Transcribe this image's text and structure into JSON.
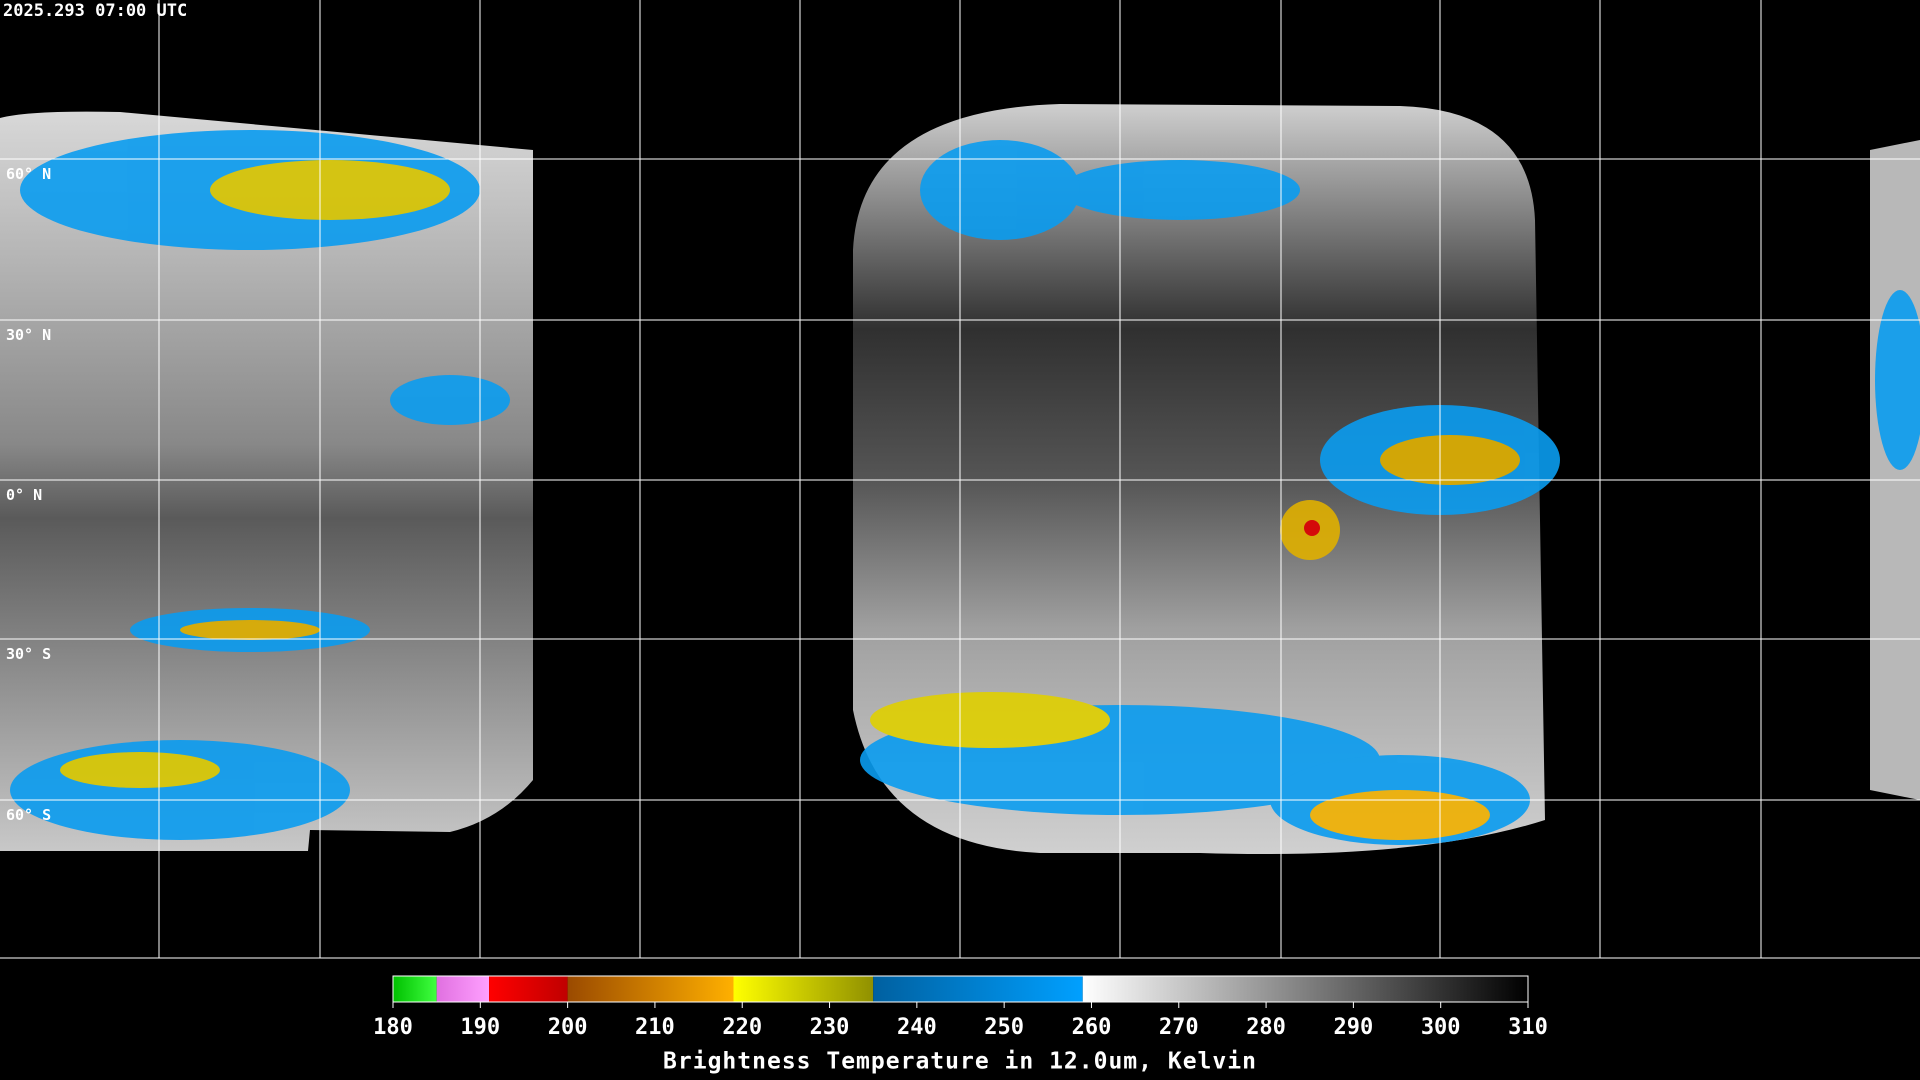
{
  "timestamp": "2025.293 07:00 UTC",
  "lat_labels": [
    "60° N",
    "30° N",
    "0° N",
    "30° S",
    "60° S"
  ],
  "colorbar": {
    "range": [
      180,
      310
    ],
    "ticks": [
      180,
      190,
      200,
      210,
      220,
      230,
      240,
      250,
      260,
      270,
      280,
      290,
      300,
      310
    ],
    "label": "Brightness Temperature in 12.0um, Kelvin",
    "segments": [
      {
        "from": 180,
        "to": 185,
        "colors": [
          "#00c000",
          "#40ff40"
        ]
      },
      {
        "from": 185,
        "to": 191,
        "colors": [
          "#e070e0",
          "#ffa0ff"
        ]
      },
      {
        "from": 191,
        "to": 200,
        "colors": [
          "#ff0000",
          "#c00000"
        ]
      },
      {
        "from": 200,
        "to": 219,
        "colors": [
          "#9a4a00",
          "#ffb000"
        ]
      },
      {
        "from": 219,
        "to": 235,
        "colors": [
          "#ffff00",
          "#909000"
        ]
      },
      {
        "from": 235,
        "to": 259,
        "colors": [
          "#0060a0",
          "#00a0ff"
        ]
      },
      {
        "from": 259,
        "to": 310,
        "colors": [
          "#ffffff",
          "#000000"
        ]
      }
    ]
  }
}
